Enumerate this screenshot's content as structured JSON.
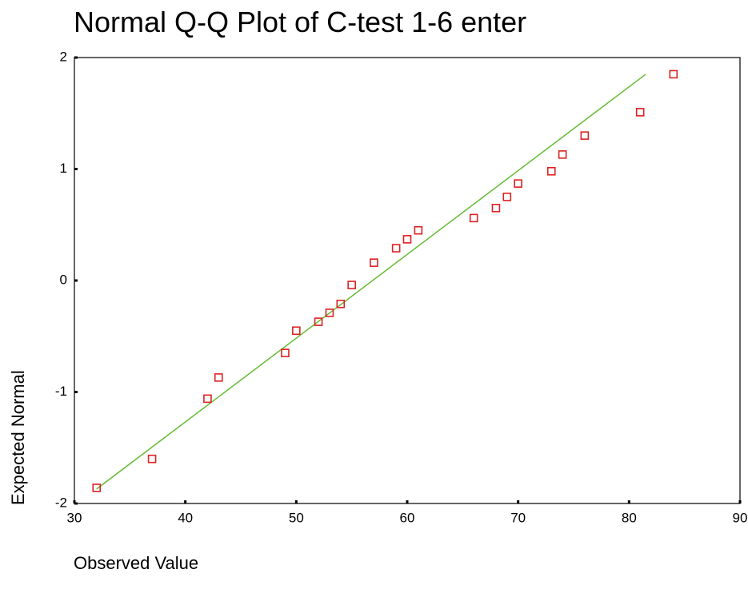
{
  "chart_data": {
    "type": "scatter",
    "title": "Normal Q-Q Plot of C-test 1-6 enter",
    "x_label": "Observed Value",
    "y_label": "Expected Normal",
    "x": [
      32,
      37,
      42,
      43,
      49,
      50,
      52,
      53,
      54,
      55,
      57,
      59,
      60,
      61,
      66,
      68,
      69,
      70,
      73,
      74,
      76,
      81,
      84
    ],
    "values": [
      -1.86,
      -1.6,
      -1.06,
      -0.87,
      -0.65,
      -0.45,
      -0.37,
      -0.29,
      -0.21,
      -0.04,
      0.16,
      0.29,
      0.37,
      0.45,
      0.56,
      0.65,
      0.75,
      0.87,
      0.98,
      1.13,
      1.3,
      1.51,
      1.85
    ],
    "color": "#dd2222",
    "reference_line": {
      "x": [
        32,
        81.5
      ],
      "values": [
        -1.87,
        1.85
      ],
      "color": "#66bb33"
    },
    "xlim": [
      30,
      90
    ],
    "xticks": [
      30,
      40,
      50,
      60,
      70,
      80,
      90
    ],
    "ylim": [
      -2,
      2
    ],
    "yticks": [
      -2,
      -1,
      0,
      1,
      2
    ]
  }
}
